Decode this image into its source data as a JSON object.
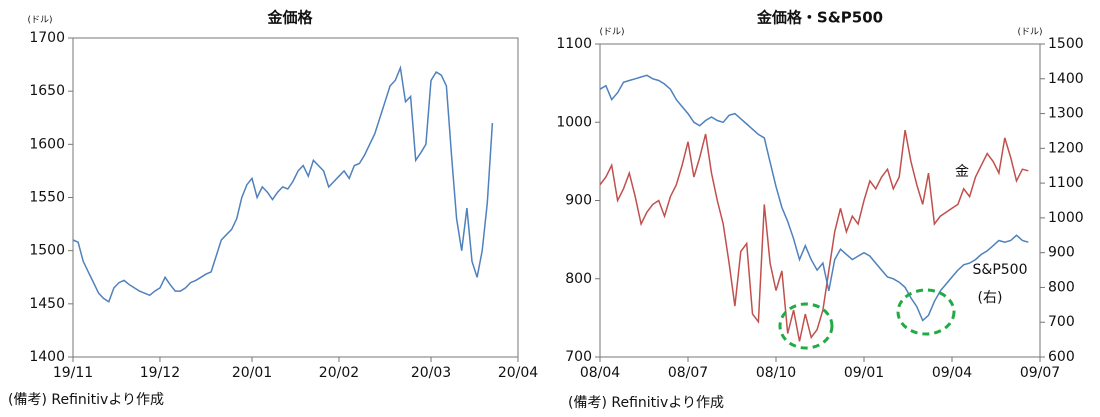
{
  "chart_data": [
    {
      "type": "line",
      "title": "金価格",
      "y_unit": "(ドル)",
      "note": "(備考) Refinitivより作成",
      "color": "#4f81bd",
      "values": [
        1510,
        1508,
        1490,
        1480,
        1470,
        1460,
        1455,
        1452,
        1465,
        1470,
        1472,
        1468,
        1465,
        1462,
        1460,
        1458,
        1462,
        1465,
        1475,
        1468,
        1462,
        1462,
        1465,
        1470,
        1472,
        1475,
        1478,
        1480,
        1495,
        1510,
        1515,
        1520,
        1530,
        1550,
        1562,
        1568,
        1550,
        1560,
        1555,
        1548,
        1555,
        1560,
        1558,
        1565,
        1575,
        1580,
        1570,
        1585,
        1580,
        1575,
        1560,
        1565,
        1570,
        1575,
        1568,
        1580,
        1582,
        1590,
        1600,
        1610,
        1625,
        1640,
        1655,
        1660,
        1672,
        1640,
        1645,
        1585,
        1592,
        1600,
        1660,
        1668,
        1665,
        1655,
        1590,
        1530,
        1500,
        1540,
        1490,
        1475,
        1500,
        1545,
        1620
      ],
      "xlim": [
        0,
        87
      ],
      "xticks": [
        {
          "value": 0,
          "label": "19/11"
        },
        {
          "value": 17,
          "label": "19/12"
        },
        {
          "value": 35,
          "label": "20/01"
        },
        {
          "value": 52,
          "label": "20/02"
        },
        {
          "value": 70,
          "label": "20/03"
        },
        {
          "value": 87,
          "label": "20/04"
        }
      ],
      "ylim": [
        1400,
        1700
      ],
      "yticks": [
        1400,
        1450,
        1500,
        1550,
        1600,
        1650,
        1700
      ]
    },
    {
      "type": "line",
      "title": "金価格・S&P500",
      "y_unit": "(ドル)",
      "y2_unit": "(ドル)",
      "note": "(備考) Refinitivより作成",
      "annotation": "(右)",
      "series": [
        {
          "name": "金",
          "color": "#c0504d",
          "values": [
            920,
            930,
            945,
            900,
            915,
            935,
            905,
            870,
            885,
            895,
            900,
            880,
            905,
            920,
            945,
            975,
            930,
            955,
            985,
            935,
            900,
            870,
            820,
            765,
            835,
            845,
            755,
            745,
            895,
            820,
            785,
            810,
            730,
            760,
            720,
            755,
            725,
            735,
            760,
            810,
            860,
            890,
            860,
            880,
            870,
            900,
            925,
            915,
            930,
            940,
            915,
            930,
            990,
            950,
            920,
            895,
            935,
            870,
            880,
            885,
            890,
            895,
            915,
            905,
            930,
            945,
            960,
            950,
            935,
            980,
            955,
            925,
            940,
            938
          ]
        },
        {
          "name": "S&P500",
          "color": "#4f81bd",
          "axis": "y2",
          "values": [
            1370,
            1380,
            1340,
            1360,
            1390,
            1395,
            1400,
            1405,
            1410,
            1400,
            1395,
            1385,
            1370,
            1340,
            1320,
            1300,
            1275,
            1265,
            1280,
            1290,
            1280,
            1275,
            1295,
            1300,
            1285,
            1270,
            1255,
            1240,
            1230,
            1160,
            1090,
            1030,
            990,
            940,
            880,
            920,
            880,
            850,
            870,
            790,
            880,
            910,
            895,
            880,
            890,
            900,
            890,
            870,
            850,
            830,
            825,
            815,
            800,
            770,
            745,
            705,
            720,
            760,
            790,
            810,
            830,
            850,
            865,
            870,
            880,
            895,
            905,
            920,
            935,
            930,
            935,
            950,
            935,
            930
          ]
        }
      ],
      "xlim": [
        0,
        75
      ],
      "xticks": [
        {
          "value": 0,
          "label": "08/04"
        },
        {
          "value": 15,
          "label": "08/07"
        },
        {
          "value": 30,
          "label": "08/10"
        },
        {
          "value": 45,
          "label": "09/01"
        },
        {
          "value": 60,
          "label": "09/04"
        },
        {
          "value": 75,
          "label": "09/07"
        }
      ],
      "ylim": [
        700,
        1100
      ],
      "yticks": [
        700,
        800,
        900,
        1000,
        1100
      ],
      "y2lim": [
        600,
        1500
      ],
      "y2ticks": [
        600,
        700,
        800,
        900,
        1000,
        1100,
        1200,
        1300,
        1400,
        1500
      ]
    }
  ]
}
